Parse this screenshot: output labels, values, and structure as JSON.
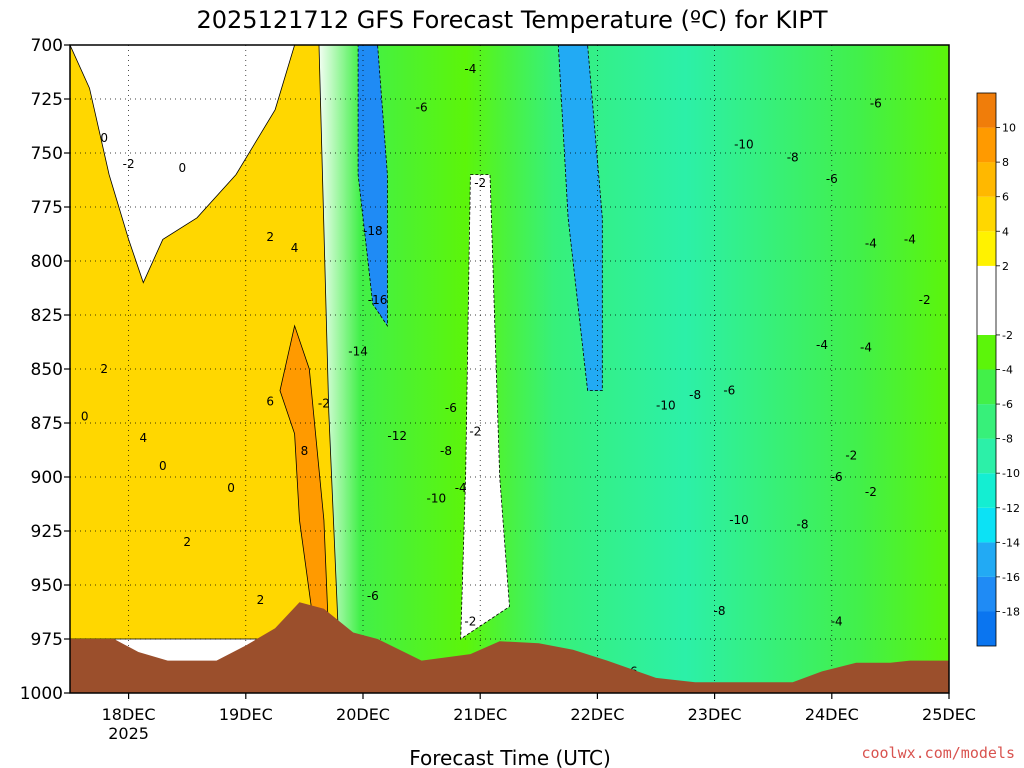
{
  "chart_data": {
    "type": "heatmap",
    "title": "2025121712 GFS Forecast Temperature (ºC) for KIPT",
    "xlabel": "Forecast Time (UTC)",
    "ylabel": "",
    "y_ticks": [
      "700",
      "725",
      "750",
      "775",
      "800",
      "825",
      "850",
      "875",
      "900",
      "925",
      "950",
      "975",
      "1000"
    ],
    "y_range": [
      700,
      1000
    ],
    "y_inverted": true,
    "x_range": [
      "2025-12-17T12",
      "2025-12-25T00"
    ],
    "x_ticks": [
      {
        "date": "2025-12-18T00",
        "label": "18DEC",
        "sublabel": "2025"
      },
      {
        "date": "2025-12-19T00",
        "label": "19DEC",
        "sublabel": ""
      },
      {
        "date": "2025-12-20T00",
        "label": "20DEC",
        "sublabel": ""
      },
      {
        "date": "2025-12-21T00",
        "label": "21DEC",
        "sublabel": ""
      },
      {
        "date": "2025-12-22T00",
        "label": "22DEC",
        "sublabel": ""
      },
      {
        "date": "2025-12-23T00",
        "label": "23DEC",
        "sublabel": ""
      },
      {
        "date": "2025-12-24T00",
        "label": "24DEC",
        "sublabel": ""
      },
      {
        "date": "2025-12-25T00",
        "label": "25DEC",
        "sublabel": ""
      }
    ],
    "grid": true,
    "colorbar": {
      "placement": "right",
      "levels": [
        {
          "from": -20,
          "to": -18,
          "color": "#0a75f0"
        },
        {
          "from": -18,
          "to": -16,
          "color": "#1f8bf5"
        },
        {
          "from": -16,
          "to": -14,
          "color": "#22aaf4"
        },
        {
          "from": -14,
          "to": -12,
          "color": "#0ce2f5"
        },
        {
          "from": -12,
          "to": -10,
          "color": "#14eed2"
        },
        {
          "from": -10,
          "to": -8,
          "color": "#2cf0a8"
        },
        {
          "from": -8,
          "to": -6,
          "color": "#37f07a"
        },
        {
          "from": -6,
          "to": -4,
          "color": "#42f049"
        },
        {
          "from": -4,
          "to": -2,
          "color": "#5cf50a"
        },
        {
          "from": -2,
          "to": 0,
          "color": "#ffffff"
        },
        {
          "from": 0,
          "to": 2,
          "color": "#ffffff"
        },
        {
          "from": 2,
          "to": 4,
          "color": "#fff200"
        },
        {
          "from": 4,
          "to": 6,
          "color": "#ffd700"
        },
        {
          "from": 6,
          "to": 8,
          "color": "#ffb800"
        },
        {
          "from": 8,
          "to": 10,
          "color": "#ff9a00"
        },
        {
          "from": 10,
          "to": 12,
          "color": "#f07d0a"
        }
      ],
      "tick_labels": [
        "-18",
        "-16",
        "-14",
        "-12",
        "-10",
        "-8",
        "-6",
        "-4",
        "-2",
        "2",
        "4",
        "6",
        "8",
        "10"
      ]
    },
    "regions": [
      {
        "name": "positive-pre-front",
        "temp": 5,
        "polygon": [
          [
            "2025-12-17T12",
            700
          ],
          [
            "2025-12-17T16",
            720
          ],
          [
            "2025-12-17T20",
            760
          ],
          [
            "2025-12-18T00",
            790
          ],
          [
            "2025-12-18T03",
            810
          ],
          [
            "2025-12-18T07",
            790
          ],
          [
            "2025-12-18T14",
            780
          ],
          [
            "2025-12-18T22",
            760
          ],
          [
            "2025-12-19T06",
            730
          ],
          [
            "2025-12-19T10",
            700
          ],
          [
            "2025-12-19T15",
            700
          ],
          [
            "2025-12-19T17",
            870
          ],
          [
            "2025-12-19T19",
            975
          ],
          [
            "2025-12-17T12",
            975
          ]
        ]
      },
      {
        "name": "warm-nose",
        "temp": 8,
        "polygon": [
          [
            "2025-12-19T07",
            860
          ],
          [
            "2025-12-19T10",
            880
          ],
          [
            "2025-12-19T11",
            920
          ],
          [
            "2025-12-19T14",
            970
          ],
          [
            "2025-12-19T17",
            975
          ],
          [
            "2025-12-19T16",
            920
          ],
          [
            "2025-12-19T13",
            850
          ],
          [
            "2025-12-19T10",
            830
          ]
        ]
      },
      {
        "name": "cold-core-20dec",
        "temp": -18,
        "polygon": [
          [
            "2025-12-19T23",
            700
          ],
          [
            "2025-12-20T03",
            700
          ],
          [
            "2025-12-20T05",
            760
          ],
          [
            "2025-12-20T05",
            830
          ],
          [
            "2025-12-20T02",
            820
          ],
          [
            "2025-12-19T23",
            760
          ]
        ]
      },
      {
        "name": "cold-core-22dec",
        "temp": -16,
        "polygon": [
          [
            "2025-12-21T16",
            700
          ],
          [
            "2025-12-21T22",
            700
          ],
          [
            "2025-12-22T01",
            780
          ],
          [
            "2025-12-22T01",
            860
          ],
          [
            "2025-12-21T22",
            860
          ],
          [
            "2025-12-21T18",
            780
          ]
        ]
      },
      {
        "name": "mild-gap-21dec",
        "temp": -1,
        "polygon": [
          [
            "2025-12-20T22",
            760
          ],
          [
            "2025-12-21T02",
            760
          ],
          [
            "2025-12-21T04",
            900
          ],
          [
            "2025-12-21T06",
            960
          ],
          [
            "2025-12-20T20",
            975
          ],
          [
            "2025-12-20T21",
            900
          ]
        ]
      }
    ],
    "contour_labels": [
      {
        "t": "2025-12-17T19",
        "p": 743,
        "text": "0"
      },
      {
        "t": "2025-12-18T00",
        "p": 755,
        "text": "-2"
      },
      {
        "t": "2025-12-18T11",
        "p": 757,
        "text": "0"
      },
      {
        "t": "2025-12-17T15",
        "p": 872,
        "text": "0"
      },
      {
        "t": "2025-12-17T19",
        "p": 850,
        "text": "2"
      },
      {
        "t": "2025-12-18T03",
        "p": 882,
        "text": "4"
      },
      {
        "t": "2025-12-18T07",
        "p": 895,
        "text": "0"
      },
      {
        "t": "2025-12-18T12",
        "p": 930,
        "text": "2"
      },
      {
        "t": "2025-12-18T21",
        "p": 905,
        "text": "0"
      },
      {
        "t": "2025-12-19T03",
        "p": 957,
        "text": "2"
      },
      {
        "t": "2025-12-19T05",
        "p": 789,
        "text": "2"
      },
      {
        "t": "2025-12-19T10",
        "p": 794,
        "text": "4"
      },
      {
        "t": "2025-12-19T05",
        "p": 865,
        "text": "6"
      },
      {
        "t": "2025-12-19T12",
        "p": 888,
        "text": "8"
      },
      {
        "t": "2025-12-19T16",
        "p": 866,
        "text": "-2"
      },
      {
        "t": "2025-12-20T02",
        "p": 786,
        "text": "-18"
      },
      {
        "t": "2025-12-20T03",
        "p": 818,
        "text": "-16"
      },
      {
        "t": "2025-12-19T23",
        "p": 842,
        "text": "-14"
      },
      {
        "t": "2025-12-20T07",
        "p": 881,
        "text": "-12"
      },
      {
        "t": "2025-12-20T15",
        "p": 910,
        "text": "-10"
      },
      {
        "t": "2025-12-20T18",
        "p": 868,
        "text": "-6"
      },
      {
        "t": "2025-12-20T17",
        "p": 888,
        "text": "-8"
      },
      {
        "t": "2025-12-20T20",
        "p": 905,
        "text": "-4"
      },
      {
        "t": "2025-12-20T23",
        "p": 879,
        "text": "-2"
      },
      {
        "t": "2025-12-20T02",
        "p": 955,
        "text": "-6"
      },
      {
        "t": "2025-12-20T12",
        "p": 729,
        "text": "-6"
      },
      {
        "t": "2025-12-20T22",
        "p": 711,
        "text": "-4"
      },
      {
        "t": "2025-12-21T00",
        "p": 764,
        "text": "-2"
      },
      {
        "t": "2025-12-20T22",
        "p": 967,
        "text": "-2"
      },
      {
        "t": "2025-12-22T14",
        "p": 867,
        "text": "-10"
      },
      {
        "t": "2025-12-22T20",
        "p": 862,
        "text": "-8"
      },
      {
        "t": "2025-12-23T03",
        "p": 860,
        "text": "-6"
      },
      {
        "t": "2025-12-23T06",
        "p": 746,
        "text": "-10"
      },
      {
        "t": "2025-12-23T16",
        "p": 752,
        "text": "-8"
      },
      {
        "t": "2025-12-24T00",
        "p": 762,
        "text": "-6"
      },
      {
        "t": "2025-12-24T09",
        "p": 727,
        "text": "-6"
      },
      {
        "t": "2025-12-24T08",
        "p": 792,
        "text": "-4"
      },
      {
        "t": "2025-12-24T16",
        "p": 790,
        "text": "-4"
      },
      {
        "t": "2025-12-24T19",
        "p": 818,
        "text": "-2"
      },
      {
        "t": "2025-12-23T22",
        "p": 839,
        "text": "-4"
      },
      {
        "t": "2025-12-24T07",
        "p": 840,
        "text": "-4"
      },
      {
        "t": "2025-12-24T04",
        "p": 890,
        "text": "-2"
      },
      {
        "t": "2025-12-24T01",
        "p": 900,
        "text": "-6"
      },
      {
        "t": "2025-12-24T08",
        "p": 907,
        "text": "-2"
      },
      {
        "t": "2025-12-23T05",
        "p": 920,
        "text": "-10"
      },
      {
        "t": "2025-12-23T18",
        "p": 922,
        "text": "-8"
      },
      {
        "t": "2025-12-23T01",
        "p": 962,
        "text": "-8"
      },
      {
        "t": "2025-12-24T01",
        "p": 967,
        "text": "-4"
      },
      {
        "t": "2025-12-22T07",
        "p": 990,
        "text": "-6"
      }
    ],
    "terrain_color": "#9b4f2c",
    "terrain": [
      [
        "2025-12-17T12",
        975
      ],
      [
        "2025-12-17T21",
        975
      ],
      [
        "2025-12-18T02",
        981
      ],
      [
        "2025-12-18T08",
        985
      ],
      [
        "2025-12-18T18",
        985
      ],
      [
        "2025-12-19T00",
        978
      ],
      [
        "2025-12-19T06",
        970
      ],
      [
        "2025-12-19T11",
        958
      ],
      [
        "2025-12-19T16",
        961
      ],
      [
        "2025-12-19T22",
        972
      ],
      [
        "2025-12-20T03",
        975
      ],
      [
        "2025-12-20T12",
        985
      ],
      [
        "2025-12-20T22",
        982
      ],
      [
        "2025-12-21T04",
        976
      ],
      [
        "2025-12-21T12",
        977
      ],
      [
        "2025-12-21T19",
        980
      ],
      [
        "2025-12-22T02",
        985
      ],
      [
        "2025-12-22T12",
        993
      ],
      [
        "2025-12-22T20",
        995
      ],
      [
        "2025-12-23T05",
        995
      ],
      [
        "2025-12-23T16",
        995
      ],
      [
        "2025-12-23T22",
        990
      ],
      [
        "2025-12-24T05",
        986
      ],
      [
        "2025-12-24T12",
        986
      ],
      [
        "2025-12-24T16",
        985
      ],
      [
        "2025-12-24T19",
        985
      ],
      [
        "2025-12-25T00",
        985
      ],
      [
        "2025-12-25T00",
        1000
      ],
      [
        "2025-12-17T12",
        1000
      ]
    ]
  },
  "credit": "coolwx.com/models",
  "colors": {
    "credit": "#d9534f",
    "contour_line": "#000000",
    "zero_line": "#b0127a"
  }
}
